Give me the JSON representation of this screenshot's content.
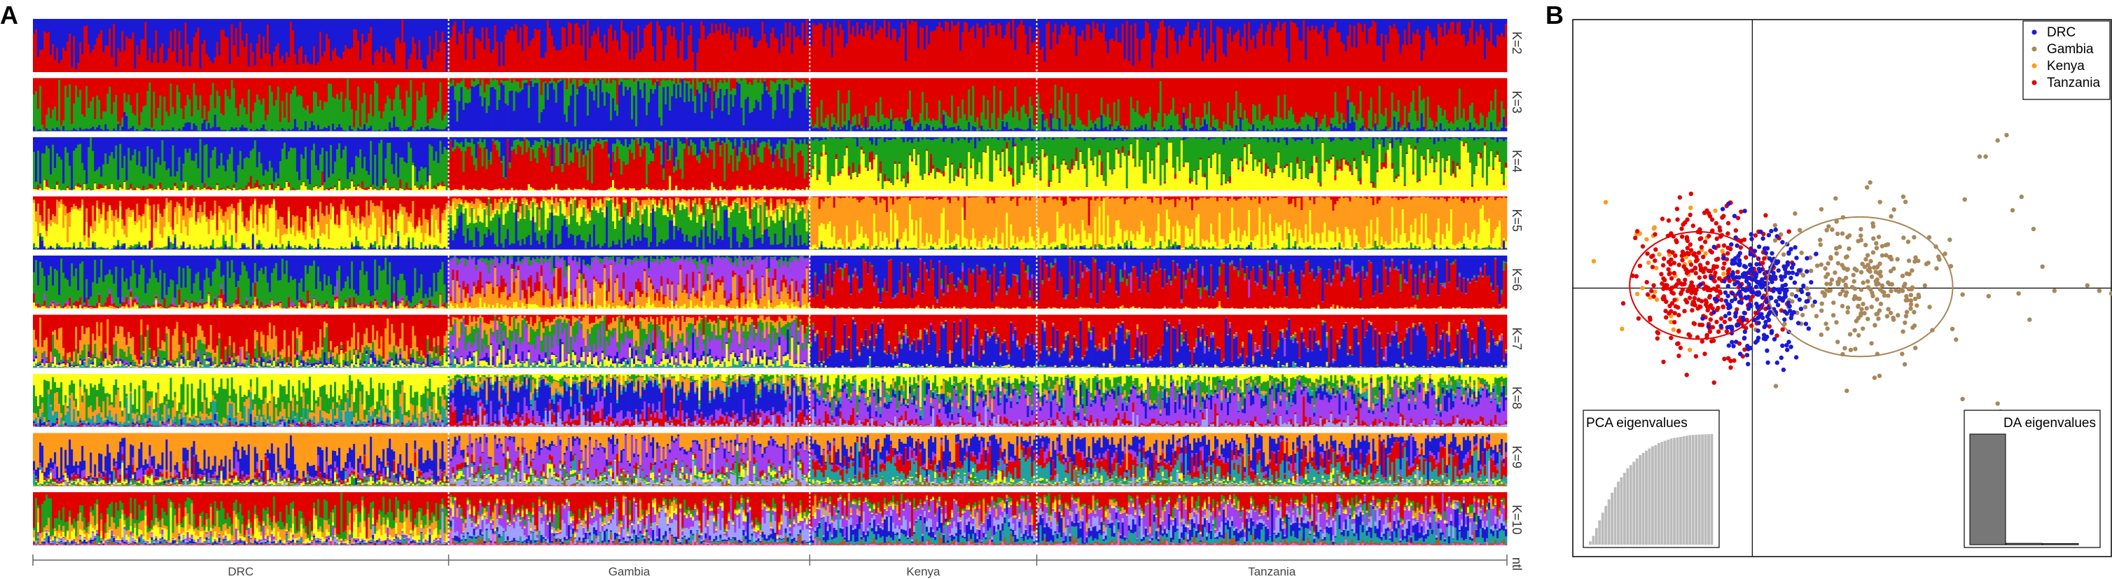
{
  "panel_a": {
    "letter": "A",
    "x_axis_end_label": "ntl"
  },
  "panel_b": {
    "letter": "B"
  },
  "chart_data": [
    {
      "type": "bar",
      "subtype": "stacked-admixture",
      "populations": [
        {
          "name": "DRC",
          "start": 0.0,
          "end": 0.282
        },
        {
          "name": "Gambia",
          "start": 0.282,
          "end": 0.527
        },
        {
          "name": "Kenya",
          "start": 0.527,
          "end": 0.681
        },
        {
          "name": "Tanzania",
          "start": 0.681,
          "end": 1.0
        }
      ],
      "panels": [
        {
          "label": "K=2",
          "components": [
            "#1a1ad6",
            "#e00000"
          ],
          "profile": {
            "DRC": [
              0.55,
              0.45
            ],
            "Gambia": [
              0.3,
              0.7
            ],
            "Kenya": [
              0.2,
              0.8
            ],
            "Tanzania": [
              0.25,
              0.75
            ]
          }
        },
        {
          "label": "K=3",
          "components": [
            "#e00000",
            "#1aa01a",
            "#1a1ad6"
          ],
          "profile": {
            "DRC": [
              0.45,
              0.5,
              0.05
            ],
            "Gambia": [
              0.05,
              0.25,
              0.7
            ],
            "Kenya": [
              0.7,
              0.25,
              0.05
            ],
            "Tanzania": [
              0.72,
              0.24,
              0.04
            ]
          }
        },
        {
          "label": "K=4",
          "components": [
            "#1a1ad6",
            "#1aa01a",
            "#e00000",
            "#ffff1a"
          ],
          "profile": {
            "DRC": [
              0.45,
              0.5,
              0.02,
              0.03
            ],
            "Gambia": [
              0.1,
              0.2,
              0.68,
              0.02
            ],
            "Kenya": [
              0.02,
              0.55,
              0.03,
              0.4
            ],
            "Tanzania": [
              0.02,
              0.5,
              0.03,
              0.45
            ]
          }
        },
        {
          "label": "K=5",
          "components": [
            "#e00000",
            "#ff9a1a",
            "#ffff1a",
            "#1aa01a",
            "#1a1ad6"
          ],
          "profile": {
            "DRC": [
              0.3,
              0.2,
              0.45,
              0.03,
              0.02
            ],
            "Gambia": [
              0.08,
              0.1,
              0.1,
              0.5,
              0.22
            ],
            "Kenya": [
              0.03,
              0.75,
              0.2,
              0.01,
              0.01
            ],
            "Tanzania": [
              0.03,
              0.72,
              0.22,
              0.02,
              0.01
            ]
          }
        },
        {
          "label": "K=6",
          "components": [
            "#1a1ad6",
            "#1aa01a",
            "#a040f0",
            "#e00000",
            "#ff9a1a",
            "#ffff1a"
          ],
          "profile": {
            "DRC": [
              0.45,
              0.45,
              0.02,
              0.04,
              0.02,
              0.02
            ],
            "Gambia": [
              0.05,
              0.05,
              0.5,
              0.1,
              0.25,
              0.05
            ],
            "Kenya": [
              0.4,
              0.02,
              0.02,
              0.55,
              0.005,
              0.005
            ],
            "Tanzania": [
              0.35,
              0.02,
              0.02,
              0.6,
              0.005,
              0.005
            ]
          }
        },
        {
          "label": "K=7",
          "components": [
            "#e00000",
            "#ff9a1a",
            "#1aa01a",
            "#a040f0",
            "#1a1ad6",
            "#ffff1a",
            "#20a0a0"
          ],
          "profile": {
            "DRC": [
              0.6,
              0.2,
              0.1,
              0.02,
              0.03,
              0.03,
              0.02
            ],
            "Gambia": [
              0.1,
              0.15,
              0.2,
              0.35,
              0.05,
              0.1,
              0.05
            ],
            "Kenya": [
              0.45,
              0.02,
              0.01,
              0.02,
              0.48,
              0.01,
              0.01
            ],
            "Tanzania": [
              0.5,
              0.02,
              0.01,
              0.02,
              0.43,
              0.01,
              0.01
            ]
          }
        },
        {
          "label": "K=8",
          "components": [
            "#ffff1a",
            "#1aa01a",
            "#ff9a1a",
            "#20a0a0",
            "#1a1ad6",
            "#a040f0",
            "#e00000",
            "#a0a0ff"
          ],
          "profile": {
            "DRC": [
              0.4,
              0.3,
              0.15,
              0.1,
              0.02,
              0.01,
              0.01,
              0.01
            ],
            "Gambia": [
              0.05,
              0.05,
              0.1,
              0.05,
              0.5,
              0.1,
              0.1,
              0.05
            ],
            "Kenya": [
              0.15,
              0.15,
              0.05,
              0.05,
              0.1,
              0.4,
              0.05,
              0.05
            ],
            "Tanzania": [
              0.12,
              0.15,
              0.05,
              0.05,
              0.1,
              0.43,
              0.05,
              0.05
            ]
          }
        },
        {
          "label": "K=9",
          "components": [
            "#ff9a1a",
            "#1a1ad6",
            "#a040f0",
            "#e00000",
            "#20a0a0",
            "#ffff1a",
            "#1aa01a",
            "#a0a0ff",
            "#b05a20"
          ],
          "profile": {
            "DRC": [
              0.55,
              0.25,
              0.05,
              0.05,
              0.02,
              0.04,
              0.02,
              0.01,
              0.01
            ],
            "Gambia": [
              0.25,
              0.05,
              0.4,
              0.05,
              0.05,
              0.05,
              0.03,
              0.1,
              0.02
            ],
            "Kenya": [
              0.2,
              0.25,
              0.05,
              0.2,
              0.2,
              0.03,
              0.02,
              0.03,
              0.02
            ],
            "Tanzania": [
              0.2,
              0.25,
              0.05,
              0.22,
              0.18,
              0.03,
              0.02,
              0.03,
              0.02
            ]
          }
        },
        {
          "label": "K=10",
          "components": [
            "#e00000",
            "#1aa01a",
            "#ff9a1a",
            "#ffff1a",
            "#a040f0",
            "#a0a0ff",
            "#1a1ad6",
            "#20a0a0",
            "#b05a20",
            "#ff60c0"
          ],
          "profile": {
            "DRC": [
              0.45,
              0.2,
              0.15,
              0.1,
              0.02,
              0.02,
              0.02,
              0.02,
              0.01,
              0.01
            ],
            "Gambia": [
              0.35,
              0.05,
              0.05,
              0.05,
              0.15,
              0.2,
              0.05,
              0.05,
              0.03,
              0.02
            ],
            "Kenya": [
              0.25,
              0.05,
              0.05,
              0.02,
              0.2,
              0.1,
              0.15,
              0.13,
              0.03,
              0.02
            ],
            "Tanzania": [
              0.25,
              0.05,
              0.05,
              0.02,
              0.2,
              0.1,
              0.15,
              0.13,
              0.03,
              0.02
            ]
          }
        }
      ],
      "legend": "none",
      "grid": false
    },
    {
      "type": "scatter",
      "subtype": "dapc",
      "legend_position": "top-right",
      "legend": [
        {
          "name": "DRC",
          "color": "#1a1ad6"
        },
        {
          "name": "Gambia",
          "color": "#a8875a"
        },
        {
          "name": "Kenya",
          "color": "#ff9a1a"
        },
        {
          "name": "Tanzania",
          "color": "#e00000"
        }
      ],
      "xlim": [
        -6,
        12
      ],
      "ylim": [
        -10,
        10
      ],
      "axes_cross": [
        0,
        0
      ],
      "groups": [
        {
          "name": "DRC",
          "center": [
            0.2,
            -0.2
          ],
          "sd": [
            0.8,
            1.1
          ],
          "n": 320
        },
        {
          "name": "Gambia",
          "center": [
            3.7,
            0.1
          ],
          "sd": [
            1.3,
            1.4
          ],
          "n": 280,
          "outliers": [
            [
              8.2,
              5.5
            ],
            [
              8.5,
              5.7
            ],
            [
              7.6,
              4.9
            ],
            [
              7.8,
              4.9
            ],
            [
              9.4,
              2.2
            ],
            [
              8.7,
              2.9
            ],
            [
              10.1,
              -0.1
            ],
            [
              11.2,
              0.1
            ],
            [
              11.6,
              -0.1
            ],
            [
              12.0,
              -0.2
            ],
            [
              9.7,
              0.8
            ],
            [
              8.9,
              -0.2
            ],
            [
              7.9,
              -0.3
            ],
            [
              8.2,
              -4.3
            ],
            [
              8.5,
              -4.7
            ],
            [
              8.3,
              -4.6
            ],
            [
              9.0,
              3.4
            ],
            [
              7.1,
              3.3
            ],
            [
              6.6,
              1.8
            ]
          ]
        },
        {
          "name": "Kenya",
          "center": [
            -2.6,
            0.6
          ],
          "sd": [
            0.9,
            1.2
          ],
          "n": 40,
          "outliers": [
            [
              -4.9,
              3.2
            ],
            [
              -5.3,
              1.0
            ]
          ]
        },
        {
          "name": "Tanzania",
          "center": [
            -1.5,
            0.3
          ],
          "sd": [
            1.1,
            1.3
          ],
          "n": 380
        }
      ],
      "ellipses": [
        {
          "name": "Tanzania",
          "cx": -1.8,
          "cy": 0.1,
          "rx": 2.3,
          "ry": 2.0
        },
        {
          "name": "Gambia",
          "cx": 3.6,
          "cy": 0.05,
          "rx": 3.1,
          "ry": 2.6
        }
      ],
      "insets": [
        {
          "title": "PCA eigenvalues",
          "position": "bottom-left",
          "type": "bar",
          "values": [
            0.03,
            0.08,
            0.15,
            0.22,
            0.29,
            0.35,
            0.41,
            0.47,
            0.52,
            0.57,
            0.61,
            0.65,
            0.69,
            0.72,
            0.75,
            0.78,
            0.81,
            0.83,
            0.85,
            0.87,
            0.89,
            0.9,
            0.92,
            0.93,
            0.94,
            0.95,
            0.96,
            0.965,
            0.97,
            0.975,
            0.98,
            0.985,
            0.99,
            0.992,
            0.994,
            0.996,
            0.997,
            0.998,
            0.999,
            1.0
          ]
        },
        {
          "title": "DA eigenvalues",
          "position": "bottom-right",
          "type": "bar",
          "values": [
            1.0,
            0.012,
            0.01
          ]
        }
      ]
    }
  ]
}
